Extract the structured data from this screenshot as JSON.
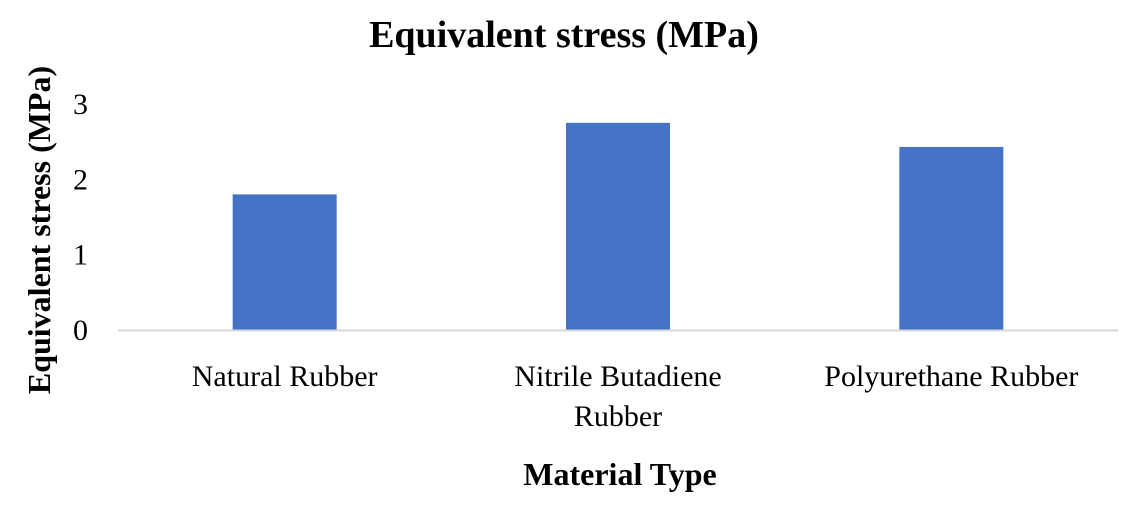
{
  "chart_data": {
    "type": "bar",
    "title": "Equivalent stress (MPa)",
    "xlabel": "Material Type",
    "ylabel": "Equivalent stress (MPa)",
    "categories": [
      [
        "Natural Rubber"
      ],
      [
        "Nitrile Butadiene",
        "Rubber"
      ],
      [
        "Polyurethane Rubber"
      ]
    ],
    "values": [
      1.8,
      2.75,
      2.43
    ],
    "ylim": [
      0,
      3
    ],
    "yticks": [
      "0",
      "1",
      "2",
      "3"
    ],
    "grid": false,
    "legend": "none",
    "bar_color": "#4472C4",
    "axis_color": "#D9D9D9"
  }
}
